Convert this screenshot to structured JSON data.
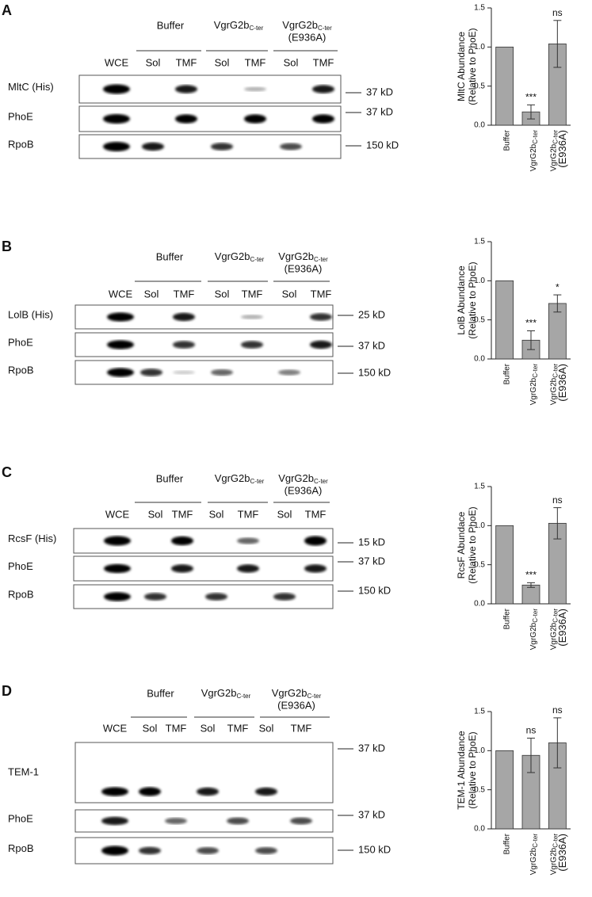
{
  "chart_data": [
    {
      "type": "bar",
      "y_label": [
        "MltC Abundance",
        "(Relative to PhoE)"
      ],
      "categories": [
        "Buffer",
        {
          "text": "VgrG2b",
          "sub": "C-ter"
        },
        {
          "text": "VgrG2b",
          "sub": "C-ter",
          "line2": "(E936A)"
        }
      ],
      "values": [
        1,
        0.17,
        1.04
      ],
      "errors": [
        null,
        0.09,
        0.3
      ],
      "annotations": [
        null,
        "***",
        "ns"
      ],
      "color": "#a6a6a6",
      "ylim": [
        0,
        1.5
      ],
      "yticks": [
        {
          "value": 0,
          "label": "0.0"
        },
        0.5,
        {
          "value": 1,
          "label": "1.0"
        },
        1.5
      ]
    },
    {
      "type": "bar",
      "y_label": [
        "LolB Abundance",
        "(Relative to PhoE)"
      ],
      "categories": [
        "Buffer",
        {
          "text": "VgrG2b",
          "sub": "C-ter"
        },
        {
          "text": "VgrG2b",
          "sub": "C-ter",
          "line2": "(E936A)"
        }
      ],
      "values": [
        1,
        0.24,
        0.71
      ],
      "errors": [
        null,
        0.12,
        0.11
      ],
      "annotations": [
        null,
        "***",
        "*"
      ],
      "color": "#a6a6a6",
      "ylim": [
        0,
        1.5
      ],
      "yticks": [
        {
          "value": 0,
          "label": "0.0"
        },
        0.5,
        {
          "value": 1,
          "label": "1.0"
        },
        1.5
      ]
    },
    {
      "type": "bar",
      "y_label": [
        "RcsF Abundace",
        "(Relative to PhoE)"
      ],
      "categories": [
        "Buffer",
        {
          "text": "VgrG2b",
          "sub": "C-ter"
        },
        {
          "text": "VgrG2b",
          "sub": "C-ter",
          "line2": "(E936A)"
        }
      ],
      "values": [
        1,
        0.24,
        1.03
      ],
      "errors": [
        null,
        0.03,
        0.2
      ],
      "annotations": [
        null,
        "***",
        "ns"
      ],
      "color": "#a6a6a6",
      "ylim": [
        0,
        1.5
      ],
      "yticks": [
        {
          "value": 0,
          "label": "0.0"
        },
        0.5,
        {
          "value": 1,
          "label": "1.0"
        },
        1.5
      ]
    },
    {
      "type": "bar",
      "y_label": [
        "TEM-1 Abundance",
        "(Relative to PhoE)"
      ],
      "categories": [
        "Buffer",
        {
          "text": "VgrG2b",
          "sub": "C-ter"
        },
        {
          "text": "VgrG2b",
          "sub": "C-ter",
          "line2": "(E936A)"
        }
      ],
      "values": [
        1,
        0.94,
        1.1
      ],
      "errors": [
        null,
        0.22,
        0.32
      ],
      "annotations": [
        null,
        "ns",
        "ns"
      ],
      "color": "#a6a6a6",
      "ylim": [
        0,
        1.5
      ],
      "yticks": [
        {
          "value": 0,
          "label": "0.0"
        },
        0.5,
        {
          "value": 1,
          "label": "1.0"
        },
        1.5
      ]
    }
  ],
  "blots": [
    {
      "panel": "A",
      "groups": [
        "Buffer",
        {
          "text": "VgrG2b",
          "sub": "C-ter"
        },
        {
          "text": "VgrG2b",
          "sub": "C-ter",
          "line2": "(E936A)"
        }
      ],
      "lanes": [
        "WCE",
        "Sol",
        "TMF",
        "Sol",
        "TMF",
        "Sol",
        "TMF"
      ],
      "rows": [
        {
          "label": "MltC (His)",
          "marker": "37 kD"
        },
        {
          "label": "PhoE",
          "marker": "37 kD"
        },
        {
          "label": "RpoB",
          "marker": "150 kD"
        }
      ]
    },
    {
      "panel": "B",
      "groups": [
        "Buffer",
        {
          "text": "VgrG2b",
          "sub": "C-ter"
        },
        {
          "text": "VgrG2b",
          "sub": "C-ter",
          "line2": "(E936A)"
        }
      ],
      "lanes": [
        "WCE",
        "Sol",
        "TMF",
        "Sol",
        "TMF",
        "Sol",
        "TMF"
      ],
      "rows": [
        {
          "label": "LolB (His)",
          "marker": "25 kD"
        },
        {
          "label": "PhoE",
          "marker": "37 kD"
        },
        {
          "label": "RpoB",
          "marker": "150 kD"
        }
      ]
    },
    {
      "panel": "C",
      "groups": [
        "Buffer",
        {
          "text": "VgrG2b",
          "sub": "C-ter"
        },
        {
          "text": "VgrG2b",
          "sub": "C-ter",
          "line2": "(E936A)"
        }
      ],
      "lanes": [
        "WCE",
        "Sol",
        "TMF",
        "Sol",
        "TMF",
        "Sol",
        "TMF"
      ],
      "rows": [
        {
          "label": "RcsF (His)",
          "marker": "15 kD"
        },
        {
          "label": "PhoE",
          "marker": "37 kD"
        },
        {
          "label": "RpoB",
          "marker": "150 kD"
        }
      ]
    },
    {
      "panel": "D",
      "groups": [
        "Buffer",
        {
          "text": "VgrG2b",
          "sub": "C-ter"
        },
        {
          "text": "VgrG2b",
          "sub": "C-ter",
          "line2": "(E936A)"
        }
      ],
      "lanes": [
        "WCE",
        "Sol",
        "TMF",
        "Sol",
        "TMF",
        "Sol",
        "TMF"
      ],
      "rows": [
        {
          "label": "TEM-1",
          "marker": "37 kD"
        },
        {
          "label": "PhoE",
          "marker": "37 kD"
        },
        {
          "label": "RpoB",
          "marker": "150 kD"
        }
      ]
    }
  ]
}
